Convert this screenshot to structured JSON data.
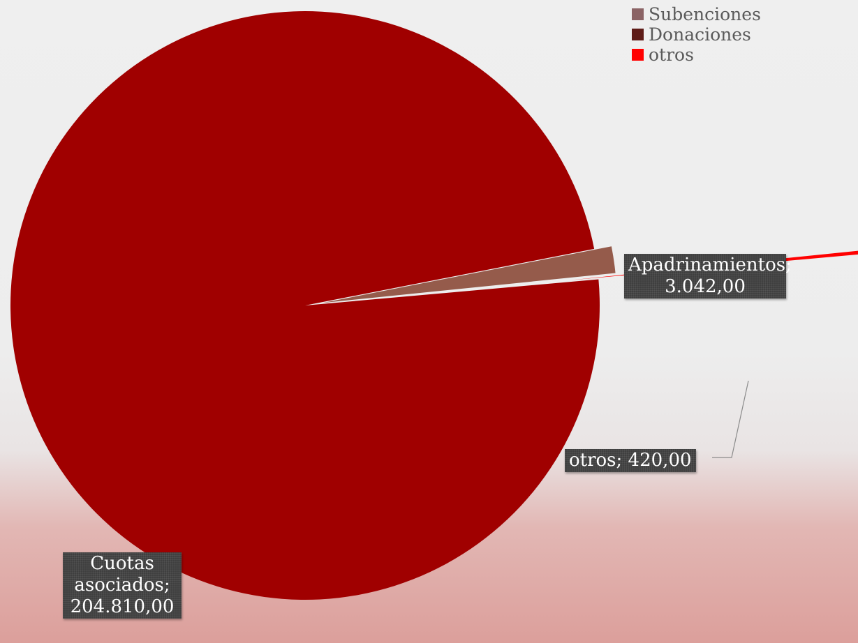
{
  "chart_data": {
    "type": "pie",
    "categories": [
      "Cuotas asociados",
      "Apadrinamientos",
      "Subenciones",
      "Donaciones",
      "otros"
    ],
    "values": [
      204810.0,
      3042.0,
      0,
      0,
      420.0
    ],
    "colors": [
      "#a00000",
      "#955b4b",
      "#8b6365",
      "#5e1b17",
      "#ff0000"
    ],
    "legend_position": "top-right",
    "legend": [
      {
        "label": "Subenciones",
        "color": "#8b6365"
      },
      {
        "label": "Donaciones",
        "color": "#5e1b17"
      },
      {
        "label": "otros",
        "color": "#ff0000"
      }
    ],
    "data_labels": {
      "cuotas": [
        "Cuotas",
        "asociados;",
        "204.810,00"
      ],
      "apadrinamientos": [
        "Apadrinamientos;",
        "3.042,00"
      ],
      "otros": [
        "otros; 420,00"
      ]
    }
  }
}
